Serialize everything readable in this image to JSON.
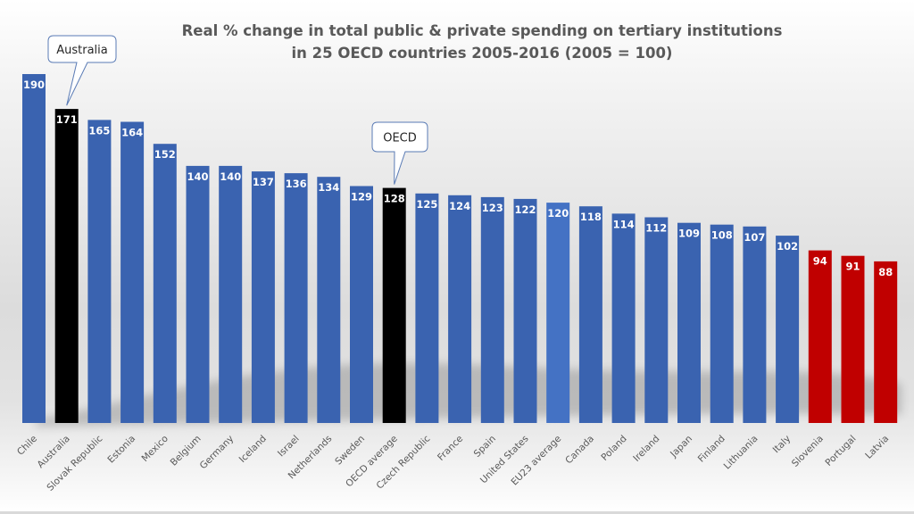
{
  "chart_data": {
    "type": "bar",
    "title": "Real % change in total public & private spending on tertiary institutions",
    "subtitle": "in 25 OECD countries 2005-2016 (2005 = 100)",
    "xlabel": "",
    "ylabel": "",
    "ylim": [
      0,
      190
    ],
    "grid": false,
    "legend": "none",
    "categories": [
      "Chile",
      "Australia",
      "Slovak Republic",
      "Estonia",
      "Mexico",
      "Belgium",
      "Germany",
      "Iceland",
      "Israel",
      "Netherlands",
      "Sweden",
      "OECD average",
      "Czech Republic",
      "France",
      "Spain",
      "United States",
      "EU23 average",
      "Canada",
      "Poland",
      "Ireland",
      "Japan",
      "Finland",
      "Lithuania",
      "Italy",
      "Slovenia",
      "Portugal",
      "Latvia"
    ],
    "values": [
      190,
      171,
      165,
      164,
      152,
      140,
      140,
      137,
      136,
      134,
      129,
      128,
      125,
      124,
      123,
      122,
      120,
      118,
      114,
      112,
      109,
      108,
      107,
      102,
      94,
      91,
      88
    ],
    "bar_colors": [
      "#3a63b0",
      "#000000",
      "#3a63b0",
      "#3a63b0",
      "#3a63b0",
      "#3a63b0",
      "#3a63b0",
      "#3a63b0",
      "#3a63b0",
      "#3a63b0",
      "#3a63b0",
      "#000000",
      "#3a63b0",
      "#3a63b0",
      "#3a63b0",
      "#3a63b0",
      "#4472c4",
      "#3a63b0",
      "#3a63b0",
      "#3a63b0",
      "#3a63b0",
      "#3a63b0",
      "#3a63b0",
      "#3a63b0",
      "#c00000",
      "#c00000",
      "#c00000"
    ],
    "annotations": [
      {
        "text": "Australia",
        "category": "Australia"
      },
      {
        "text": "OECD",
        "category": "OECD average"
      }
    ]
  },
  "colors": {
    "default_bar": "#3a63b0",
    "highlight_bar": "#000000",
    "eu_bar": "#4472c4",
    "below_100_bar": "#c00000"
  }
}
